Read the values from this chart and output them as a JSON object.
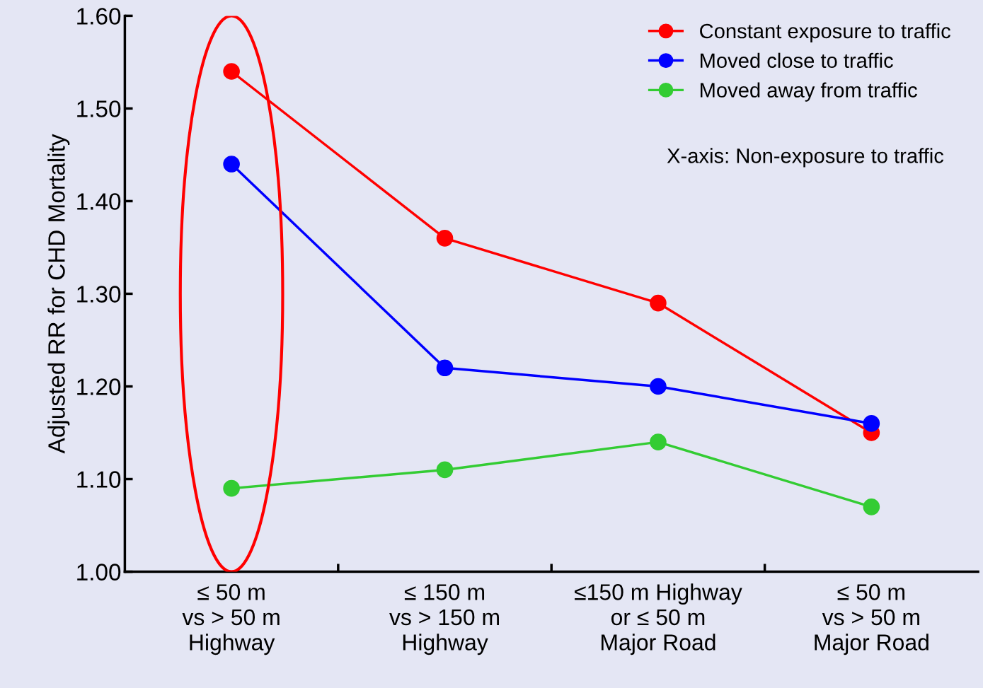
{
  "chart_data": {
    "type": "line",
    "ylabel": "Adjusted RR for CHD Mortality",
    "categories": [
      "≤ 50 m\nvs > 50 m\nHighway",
      "≤ 150 m\nvs > 150 m\nHighway",
      "≤150 m Highway\nor ≤ 50 m\nMajor Road",
      "≤ 50 m\nvs > 50 m\nMajor Road"
    ],
    "series": [
      {
        "name": "Constant exposure to traffic",
        "color": "#ff0000",
        "values": [
          1.54,
          1.36,
          1.29,
          1.15
        ]
      },
      {
        "name": "Moved close to traffic",
        "color": "#0000ff",
        "values": [
          1.44,
          1.22,
          1.2,
          1.16
        ]
      },
      {
        "name": "Moved away from traffic",
        "color": "#33cc33",
        "values": [
          1.09,
          1.11,
          1.14,
          1.07
        ]
      }
    ],
    "ylim": [
      1.0,
      1.6
    ],
    "yticks": [
      {
        "value": 1.0,
        "label": "1.00"
      },
      {
        "value": 1.1,
        "label": "1.10"
      },
      {
        "value": 1.2,
        "label": "1.20"
      },
      {
        "value": 1.3,
        "label": "1.30"
      },
      {
        "value": 1.4,
        "label": "1.40"
      },
      {
        "value": 1.5,
        "label": "1.50"
      },
      {
        "value": 1.6,
        "label": "1.60"
      }
    ],
    "annotations": [
      "X-axis: Non-exposure to traffic"
    ],
    "legend": "top right",
    "marker": "circle",
    "line_style": "solid",
    "grid": false
  }
}
